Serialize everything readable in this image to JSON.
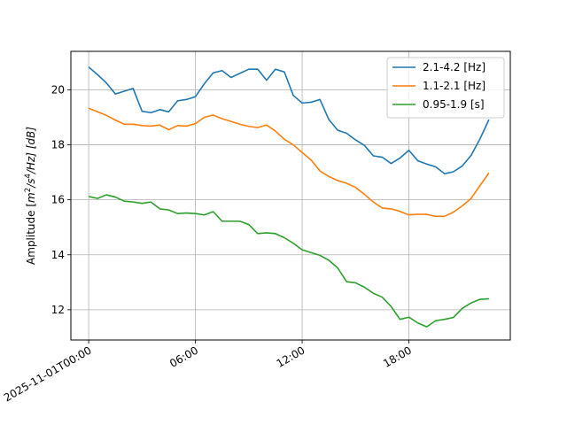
{
  "chart_data": {
    "type": "line",
    "title": "",
    "xlabel": "",
    "ylabel_parts": {
      "before": "Amplitude [",
      "m": "m",
      "m_exp": "2",
      "s": "/s",
      "s_exp": "4",
      "after": "/Hz] [dB]"
    },
    "x_ticks": [
      {
        "hours": 0,
        "label": "2025-11-01T00:00"
      },
      {
        "hours": 6,
        "label": "06:00"
      },
      {
        "hours": 12,
        "label": "12:00"
      },
      {
        "hours": 18,
        "label": "18:00"
      }
    ],
    "y_ticks": [
      12,
      14,
      16,
      18,
      20
    ],
    "xlim_hours": [
      -1.0,
      23.7
    ],
    "ylim": [
      10.9,
      21.4
    ],
    "grid": true,
    "legend_position": "top-right",
    "x_hours": [
      0,
      0.5,
      1,
      1.5,
      2,
      2.5,
      3,
      3.5,
      4,
      4.5,
      5,
      5.5,
      6,
      6.5,
      7,
      7.5,
      8,
      8.5,
      9,
      9.5,
      10,
      10.5,
      11,
      11.5,
      12,
      12.5,
      13,
      13.5,
      14,
      14.5,
      15,
      15.5,
      16,
      16.5,
      17,
      17.5,
      18,
      18.5,
      19,
      19.5,
      20,
      20.5,
      21,
      21.5,
      22,
      22.5
    ],
    "series": [
      {
        "name": "2.1-4.2 [Hz]",
        "color": "#1f77b4",
        "values": [
          20.83,
          20.55,
          20.25,
          19.85,
          19.95,
          20.05,
          19.22,
          19.17,
          19.28,
          19.2,
          19.6,
          19.65,
          19.75,
          20.22,
          20.62,
          20.7,
          20.45,
          20.6,
          20.75,
          20.75,
          20.35,
          20.75,
          20.65,
          19.8,
          19.52,
          19.55,
          19.65,
          18.92,
          18.53,
          18.42,
          18.18,
          17.98,
          17.6,
          17.55,
          17.32,
          17.52,
          17.8,
          17.42,
          17.3,
          17.2,
          16.95,
          17.02,
          17.23,
          17.62,
          18.22,
          18.92
        ]
      },
      {
        "name": "1.1-2.1 [Hz]",
        "color": "#ff7f0e",
        "values": [
          19.33,
          19.2,
          19.07,
          18.9,
          18.75,
          18.75,
          18.7,
          18.68,
          18.72,
          18.55,
          18.7,
          18.68,
          18.77,
          19.0,
          19.08,
          18.95,
          18.85,
          18.75,
          18.67,
          18.63,
          18.72,
          18.5,
          18.2,
          18.0,
          17.72,
          17.45,
          17.05,
          16.85,
          16.7,
          16.6,
          16.45,
          16.2,
          15.92,
          15.7,
          15.67,
          15.58,
          15.45,
          15.47,
          15.47,
          15.4,
          15.4,
          15.55,
          15.78,
          16.05,
          16.52,
          16.98
        ]
      },
      {
        "name": "0.95-1.9 [s]",
        "color": "#2ca02c",
        "values": [
          16.12,
          16.05,
          16.18,
          16.1,
          15.95,
          15.92,
          15.87,
          15.92,
          15.67,
          15.63,
          15.5,
          15.52,
          15.5,
          15.45,
          15.57,
          15.22,
          15.22,
          15.22,
          15.1,
          14.77,
          14.8,
          14.77,
          14.62,
          14.42,
          14.18,
          14.08,
          13.98,
          13.8,
          13.52,
          13.02,
          12.98,
          12.82,
          12.6,
          12.46,
          12.12,
          11.65,
          11.73,
          11.52,
          11.38,
          11.6,
          11.65,
          11.72,
          12.05,
          12.25,
          12.38,
          12.4
        ]
      }
    ]
  }
}
